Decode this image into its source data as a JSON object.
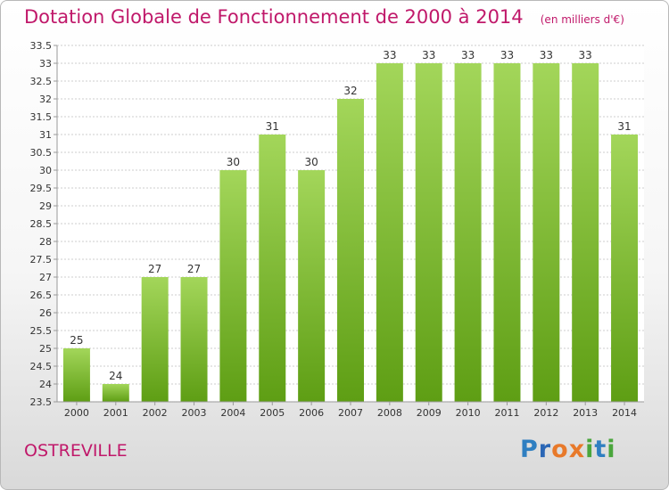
{
  "header": {
    "title": "Dotation Globale de Fonctionnement de 2000 à 2014",
    "subtitle": "(en milliers d'€)"
  },
  "footer": {
    "commune": "OSTREVILLE",
    "logo": "Proxiti"
  },
  "colors": {
    "title": "#c0186a",
    "bar_light": "#a3d65a",
    "bar_dark": "#5e9e14",
    "grid": "#cccccc",
    "axis_text": "#333333"
  },
  "chart_data": {
    "type": "bar",
    "title": "Dotation Globale de Fonctionnement de 2000 à 2014",
    "subtitle": "(en milliers d'€)",
    "xlabel": "",
    "ylabel": "",
    "categories": [
      "2000",
      "2001",
      "2002",
      "2003",
      "2004",
      "2005",
      "2006",
      "2007",
      "2008",
      "2009",
      "2010",
      "2011",
      "2012",
      "2013",
      "2014"
    ],
    "values": [
      25,
      24,
      27,
      27,
      30,
      31,
      30,
      32,
      33,
      33,
      33,
      33,
      33,
      33,
      31
    ],
    "ylim": [
      23.5,
      33.5
    ],
    "yticks": [
      "23.5",
      "24",
      "24.5",
      "25",
      "25.5",
      "26",
      "26.5",
      "27",
      "27.5",
      "28",
      "28.5",
      "29",
      "29.5",
      "30",
      "30.5",
      "31",
      "31.5",
      "32",
      "32.5",
      "33",
      "33.5"
    ],
    "grid": true,
    "legend": "none"
  }
}
